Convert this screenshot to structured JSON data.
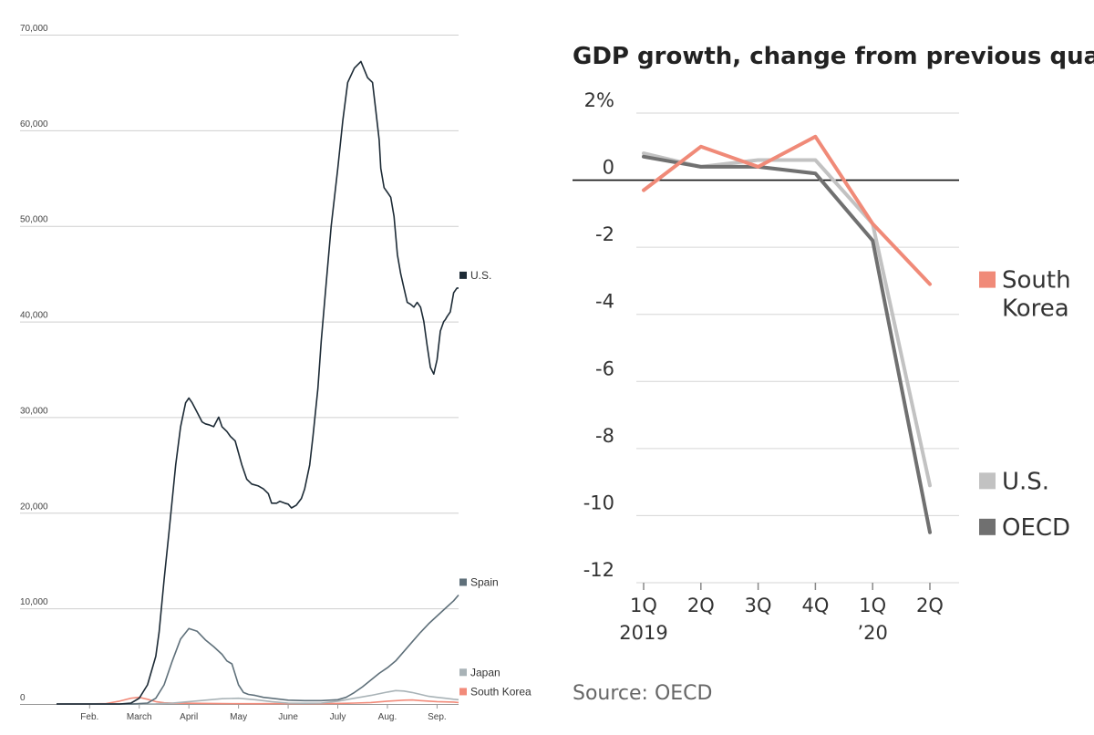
{
  "chart_data": [
    {
      "type": "line",
      "title": "",
      "xlabel": "",
      "ylabel": "",
      "ylim": [
        0,
        70000
      ],
      "yticks": [
        "70,000",
        "60,000",
        "50,000",
        "40,000",
        "30,000",
        "20,000",
        "10,000",
        "0"
      ],
      "ytick_values": [
        70000,
        60000,
        50000,
        40000,
        30000,
        20000,
        10000,
        0
      ],
      "xticks": [
        "Feb.",
        "March",
        "April",
        "May",
        "June",
        "July",
        "Aug.",
        "Sep."
      ],
      "xtick_days": [
        20,
        50,
        80,
        110,
        140,
        170,
        200,
        230
      ],
      "xlim_days": [
        0,
        243
      ],
      "grid": true,
      "legend_placement": "right end labels",
      "series": [
        {
          "name": "U.S.",
          "color": "#1d2b36",
          "x": [
            0,
            38,
            45,
            50,
            55,
            60,
            62,
            65,
            68,
            72,
            75,
            78,
            80,
            82,
            85,
            88,
            90,
            92,
            95,
            98,
            100,
            103,
            105,
            108,
            112,
            115,
            118,
            122,
            125,
            128,
            130,
            133,
            135,
            138,
            140,
            142,
            145,
            148,
            150,
            153,
            155,
            158,
            160,
            163,
            166,
            170,
            173,
            176,
            180,
            184,
            188,
            191,
            193,
            195,
            196,
            198,
            200,
            202,
            204,
            206,
            208,
            210,
            212,
            214,
            216,
            218,
            220,
            222,
            224,
            226,
            228,
            230,
            232,
            234,
            235,
            236,
            238,
            240,
            242,
            243
          ],
          "values": [
            0,
            0,
            100,
            600,
            2000,
            5000,
            7500,
            13000,
            18000,
            25000,
            29000,
            31500,
            32000,
            31500,
            30500,
            29500,
            29300,
            29200,
            29000,
            30000,
            29000,
            28500,
            28000,
            27500,
            25000,
            23500,
            23000,
            22800,
            22500,
            22000,
            21000,
            21000,
            21200,
            21000,
            20900,
            20500,
            20800,
            21500,
            22500,
            25000,
            28000,
            33000,
            38000,
            44000,
            50000,
            56000,
            61000,
            65000,
            66500,
            67200,
            65500,
            65000,
            62000,
            59000,
            56000,
            54000,
            53500,
            53000,
            51000,
            47000,
            45000,
            43500,
            42000,
            41800,
            41500,
            42000,
            41500,
            40000,
            37500,
            35200,
            34500,
            36000,
            39000,
            40000,
            40200,
            40500,
            41000,
            43000,
            43500,
            43500
          ]
        },
        {
          "name": "Spain",
          "color": "#5f707a",
          "x": [
            0,
            45,
            55,
            60,
            65,
            70,
            75,
            80,
            85,
            90,
            95,
            100,
            103,
            106,
            110,
            113,
            116,
            120,
            125,
            130,
            140,
            150,
            160,
            170,
            175,
            180,
            185,
            190,
            195,
            200,
            205,
            210,
            215,
            220,
            225,
            230,
            235,
            240,
            243
          ],
          "values": [
            0,
            0,
            100,
            600,
            2000,
            4500,
            6800,
            7900,
            7600,
            6700,
            6000,
            5200,
            4500,
            4200,
            2000,
            1200,
            1000,
            900,
            700,
            600,
            400,
            350,
            350,
            450,
            700,
            1200,
            1800,
            2500,
            3200,
            3800,
            4500,
            5500,
            6500,
            7500,
            8400,
            9200,
            10000,
            10800,
            11400
          ]
        },
        {
          "name": "Japan",
          "color": "#a9b3b7",
          "x": [
            0,
            60,
            70,
            80,
            90,
            100,
            110,
            120,
            130,
            140,
            150,
            160,
            170,
            180,
            190,
            200,
            205,
            210,
            215,
            220,
            225,
            230,
            235,
            240,
            243
          ],
          "values": [
            0,
            20,
            100,
            250,
            400,
            550,
            600,
            450,
            250,
            100,
            80,
            100,
            300,
            600,
            900,
            1250,
            1400,
            1350,
            1200,
            1000,
            800,
            700,
            600,
            500,
            450
          ]
        },
        {
          "name": "South Korea",
          "color": "#f28b7a",
          "x": [
            0,
            20,
            30,
            38,
            45,
            50,
            55,
            60,
            65,
            70,
            80,
            100,
            120,
            140,
            160,
            170,
            180,
            190,
            200,
            210,
            215,
            220,
            230,
            240,
            243
          ],
          "values": [
            0,
            10,
            50,
            300,
            600,
            700,
            500,
            250,
            120,
            90,
            80,
            40,
            30,
            40,
            40,
            60,
            100,
            150,
            300,
            400,
            420,
            350,
            250,
            200,
            150
          ]
        }
      ]
    },
    {
      "type": "line",
      "title": "GDP growth, change from previous quarter",
      "xlabel": "",
      "ylabel": "",
      "ylim": [
        -12,
        2
      ],
      "yticks": [
        "2%",
        "0",
        "-2",
        "-4",
        "-6",
        "-8",
        "-10",
        "-12"
      ],
      "ytick_values": [
        2,
        0,
        -2,
        -4,
        -6,
        -8,
        -10,
        -12
      ],
      "categories": [
        "1Q 2019",
        "2Q",
        "3Q",
        "4Q",
        "1Q ’20",
        "2Q"
      ],
      "category_lines": [
        [
          "1Q",
          "2019"
        ],
        [
          "2Q",
          ""
        ],
        [
          "3Q",
          ""
        ],
        [
          "4Q",
          ""
        ],
        [
          "1Q",
          "’20"
        ],
        [
          "2Q",
          ""
        ]
      ],
      "grid": true,
      "legend_placement": "right",
      "series": [
        {
          "name": "South Korea",
          "legend_lines": [
            "South",
            "Korea"
          ],
          "color": "#f08a78",
          "values": [
            -0.3,
            1.0,
            0.4,
            1.3,
            -1.3,
            -3.1
          ]
        },
        {
          "name": "U.S.",
          "legend_lines": [
            "U.S."
          ],
          "color": "#c2c2c2",
          "values": [
            0.8,
            0.4,
            0.6,
            0.6,
            -1.3,
            -9.1
          ]
        },
        {
          "name": "OECD",
          "legend_lines": [
            "OECD"
          ],
          "color": "#707070",
          "values": [
            0.7,
            0.4,
            0.4,
            0.2,
            -1.8,
            -10.5
          ]
        }
      ],
      "source": "Source: OECD"
    }
  ]
}
